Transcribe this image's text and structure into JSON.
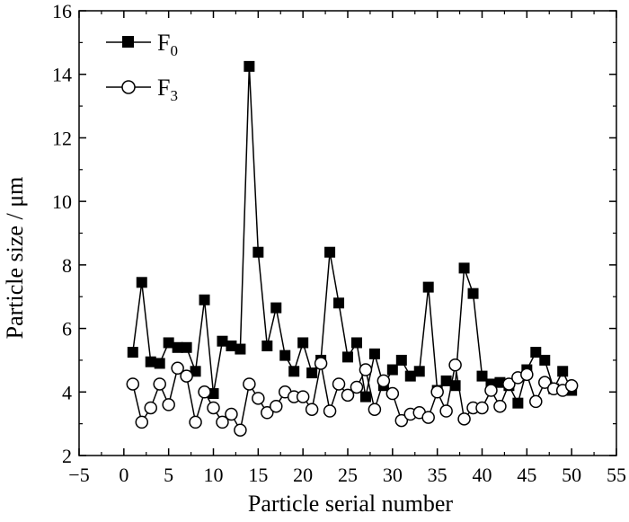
{
  "chart_data": {
    "type": "line",
    "xlabel": "Particle serial number",
    "ylabel": "Particle size / μm",
    "xlim": [
      -5,
      55
    ],
    "ylim": [
      2,
      16
    ],
    "xticks": [
      -5,
      0,
      5,
      10,
      15,
      20,
      25,
      30,
      35,
      40,
      45,
      50,
      55
    ],
    "yticks": [
      2,
      4,
      6,
      8,
      10,
      12,
      14,
      16
    ],
    "xtick_labels": [
      "−5",
      "0",
      "5",
      "10",
      "15",
      "20",
      "25",
      "30",
      "35",
      "40",
      "45",
      "50",
      "55"
    ],
    "ytick_labels": [
      "2",
      "4",
      "6",
      "8",
      "10",
      "12",
      "14",
      "16"
    ],
    "legend_position": "top-left",
    "grid": false,
    "series": [
      {
        "name": "F",
        "name_sub": "0",
        "marker": "filled-square",
        "color": "#000000",
        "x": [
          1,
          2,
          3,
          4,
          5,
          6,
          7,
          8,
          9,
          10,
          11,
          12,
          13,
          14,
          15,
          16,
          17,
          18,
          19,
          20,
          21,
          22,
          23,
          24,
          25,
          26,
          27,
          28,
          29,
          30,
          31,
          32,
          33,
          34,
          35,
          36,
          37,
          38,
          39,
          40,
          41,
          42,
          43,
          44,
          45,
          46,
          47,
          48,
          49,
          50
        ],
        "y": [
          5.25,
          7.45,
          4.95,
          4.9,
          5.55,
          5.4,
          5.4,
          4.65,
          6.9,
          3.95,
          5.6,
          5.45,
          5.35,
          14.25,
          8.4,
          5.45,
          6.65,
          5.15,
          4.65,
          5.55,
          4.6,
          5.0,
          8.4,
          6.8,
          5.1,
          5.55,
          3.85,
          5.2,
          4.2,
          4.7,
          5.0,
          4.5,
          4.65,
          7.3,
          4.05,
          4.35,
          4.2,
          7.9,
          7.1,
          4.5,
          4.25,
          4.3,
          4.2,
          3.65,
          4.7,
          5.25,
          5.0,
          4.1,
          4.65,
          4.05
        ]
      },
      {
        "name": "F",
        "name_sub": "3",
        "marker": "open-circle",
        "color": "#000000",
        "x": [
          1,
          2,
          3,
          4,
          5,
          6,
          7,
          8,
          9,
          10,
          11,
          12,
          13,
          14,
          15,
          16,
          17,
          18,
          19,
          20,
          21,
          22,
          23,
          24,
          25,
          26,
          27,
          28,
          29,
          30,
          31,
          32,
          33,
          34,
          35,
          36,
          37,
          38,
          39,
          40,
          41,
          42,
          43,
          44,
          45,
          46,
          47,
          48,
          49,
          50
        ],
        "y": [
          4.25,
          3.05,
          3.5,
          4.25,
          3.6,
          4.75,
          4.5,
          3.05,
          4.0,
          3.5,
          3.05,
          3.3,
          2.8,
          4.25,
          3.8,
          3.35,
          3.55,
          4.0,
          3.85,
          3.85,
          3.45,
          4.9,
          3.4,
          4.25,
          3.9,
          4.15,
          4.7,
          3.45,
          4.35,
          3.95,
          3.1,
          3.3,
          3.35,
          3.2,
          4.0,
          3.4,
          4.85,
          3.15,
          3.5,
          3.5,
          4.05,
          3.55,
          4.25,
          4.45,
          4.55,
          3.7,
          4.3,
          4.1,
          4.05,
          4.2
        ]
      }
    ]
  }
}
